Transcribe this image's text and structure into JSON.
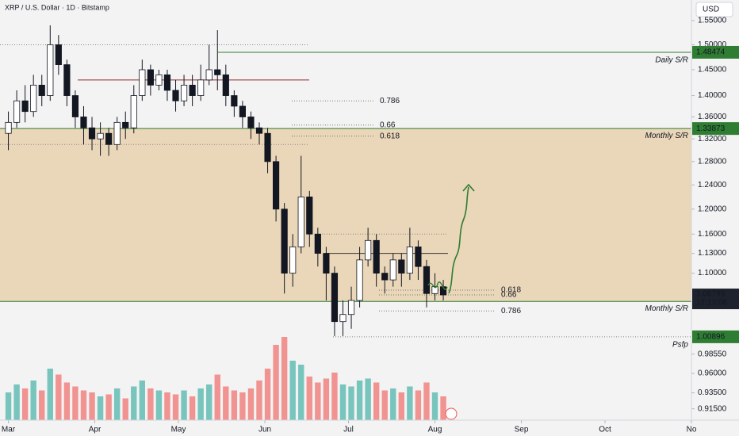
{
  "chart_data": {
    "type": "candlestick",
    "title": "XRP / U.S. Dollar · 1D · Bitstamp",
    "currency": "USD",
    "log_scale": true,
    "ylim": [
      0.901,
      1.594
    ],
    "yticks": [
      {
        "value": 1.55,
        "label": "1.55000"
      },
      {
        "value": 1.5,
        "label": "1.50000"
      },
      {
        "value": 1.45,
        "label": "1.45000"
      },
      {
        "value": 1.4,
        "label": "1.40000"
      },
      {
        "value": 1.36,
        "label": "1.36000"
      },
      {
        "value": 1.32,
        "label": "1.32000"
      },
      {
        "value": 1.28,
        "label": "1.28000"
      },
      {
        "value": 1.24,
        "label": "1.24000"
      },
      {
        "value": 1.2,
        "label": "1.20000"
      },
      {
        "value": 1.16,
        "label": "1.16000"
      },
      {
        "value": 1.13,
        "label": "1.13000"
      },
      {
        "value": 1.1,
        "label": "1.10000"
      },
      {
        "value": 0.9855,
        "label": "0.98550"
      },
      {
        "value": 0.96,
        "label": "0.96000"
      },
      {
        "value": 0.935,
        "label": "0.93500"
      },
      {
        "value": 0.915,
        "label": "0.91500"
      }
    ],
    "xlim": [
      -3,
      245
    ],
    "xticks": [
      {
        "value": 0,
        "label": "Mar"
      },
      {
        "value": 31,
        "label": "Apr"
      },
      {
        "value": 61,
        "label": "May"
      },
      {
        "value": 92,
        "label": "Jun"
      },
      {
        "value": 122,
        "label": "Jul"
      },
      {
        "value": 153,
        "label": "Aug"
      },
      {
        "value": 184,
        "label": "Sep"
      },
      {
        "value": 214,
        "label": "Oct"
      },
      {
        "value": 245,
        "label": "No"
      }
    ],
    "x": [
      0,
      3,
      6,
      9,
      12,
      15,
      18,
      21,
      24,
      27,
      30,
      33,
      36,
      39,
      42,
      45,
      48,
      51,
      54,
      57,
      60,
      63,
      66,
      69,
      72,
      75,
      78,
      81,
      84,
      87,
      90,
      93,
      96,
      99,
      102,
      105,
      108,
      111,
      114,
      117,
      120,
      123,
      126,
      129,
      132,
      135,
      138,
      141,
      144,
      147,
      150,
      153,
      156
    ],
    "open": [
      1.33,
      1.35,
      1.39,
      1.37,
      1.42,
      1.4,
      1.5,
      1.46,
      1.4,
      1.36,
      1.34,
      1.32,
      1.33,
      1.31,
      1.35,
      1.34,
      1.4,
      1.45,
      1.42,
      1.44,
      1.41,
      1.39,
      1.42,
      1.4,
      1.43,
      1.45,
      1.44,
      1.4,
      1.38,
      1.36,
      1.34,
      1.33,
      1.28,
      1.2,
      1.1,
      1.14,
      1.22,
      1.16,
      1.13,
      1.1,
      1.03,
      1.04,
      1.06,
      1.12,
      1.15,
      1.1,
      1.09,
      1.12,
      1.1,
      1.14,
      1.11,
      1.07,
      1.08
    ],
    "high": [
      1.37,
      1.41,
      1.42,
      1.44,
      1.44,
      1.54,
      1.52,
      1.47,
      1.41,
      1.38,
      1.36,
      1.35,
      1.34,
      1.36,
      1.37,
      1.42,
      1.47,
      1.46,
      1.45,
      1.45,
      1.43,
      1.44,
      1.44,
      1.46,
      1.5,
      1.53,
      1.46,
      1.41,
      1.39,
      1.37,
      1.35,
      1.34,
      1.29,
      1.21,
      1.16,
      1.29,
      1.23,
      1.17,
      1.14,
      1.11,
      1.06,
      1.08,
      1.14,
      1.17,
      1.16,
      1.11,
      1.13,
      1.13,
      1.17,
      1.15,
      1.12,
      1.1,
      1.09
    ],
    "low": [
      1.3,
      1.34,
      1.35,
      1.36,
      1.38,
      1.39,
      1.44,
      1.38,
      1.34,
      1.31,
      1.3,
      1.29,
      1.29,
      1.3,
      1.32,
      1.33,
      1.39,
      1.4,
      1.41,
      1.39,
      1.37,
      1.38,
      1.38,
      1.39,
      1.42,
      1.41,
      1.38,
      1.36,
      1.34,
      1.32,
      1.31,
      1.26,
      1.18,
      1.07,
      1.08,
      1.13,
      1.14,
      1.11,
      1.06,
      1.01,
      1.01,
      1.02,
      1.05,
      1.11,
      1.08,
      1.07,
      1.08,
      1.08,
      1.09,
      1.09,
      1.05,
      1.06,
      1.06
    ],
    "close": [
      1.35,
      1.39,
      1.37,
      1.42,
      1.4,
      1.5,
      1.46,
      1.4,
      1.36,
      1.34,
      1.32,
      1.33,
      1.31,
      1.35,
      1.34,
      1.4,
      1.45,
      1.42,
      1.44,
      1.41,
      1.39,
      1.42,
      1.4,
      1.43,
      1.45,
      1.44,
      1.4,
      1.38,
      1.36,
      1.34,
      1.33,
      1.28,
      1.2,
      1.1,
      1.14,
      1.22,
      1.16,
      1.13,
      1.1,
      1.03,
      1.04,
      1.06,
      1.12,
      1.15,
      1.1,
      1.09,
      1.12,
      1.1,
      1.14,
      1.11,
      1.07,
      1.08,
      1.068
    ],
    "volume": [
      140,
      180,
      160,
      200,
      150,
      260,
      230,
      190,
      170,
      150,
      140,
      120,
      130,
      160,
      110,
      170,
      200,
      160,
      150,
      140,
      130,
      150,
      120,
      160,
      180,
      230,
      170,
      150,
      140,
      160,
      200,
      260,
      380,
      420,
      300,
      280,
      220,
      190,
      210,
      240,
      180,
      170,
      200,
      210,
      190,
      150,
      160,
      140,
      170,
      150,
      190,
      140,
      120
    ],
    "volume_ylim": [
      0,
      520
    ],
    "up_color": "#26a69a",
    "down_color": "#ef5350",
    "zone": {
      "top": 1.33873,
      "bottom": 1.05862,
      "color": "#ead6b8"
    },
    "levels": [
      {
        "label": "Daily S/R",
        "value": 1.48474
      },
      {
        "label": "Monthly S/R",
        "value": 1.33873
      },
      {
        "label": "Monthly S/R",
        "value": 1.05862
      },
      {
        "label": "Psfp",
        "value": 1.00896
      }
    ],
    "current_price": 1.06799,
    "countdown": "17:13:08",
    "fib_upper": [
      {
        "label": "0.786",
        "value": 1.39
      },
      {
        "label": "0.66",
        "value": 1.345
      },
      {
        "label": "0.618",
        "value": 1.325
      }
    ],
    "fib_lower": [
      {
        "label": "0.618",
        "value": 1.075
      },
      {
        "label": "0.66",
        "value": 1.068
      },
      {
        "label": "0.786",
        "value": 1.045
      }
    ]
  }
}
